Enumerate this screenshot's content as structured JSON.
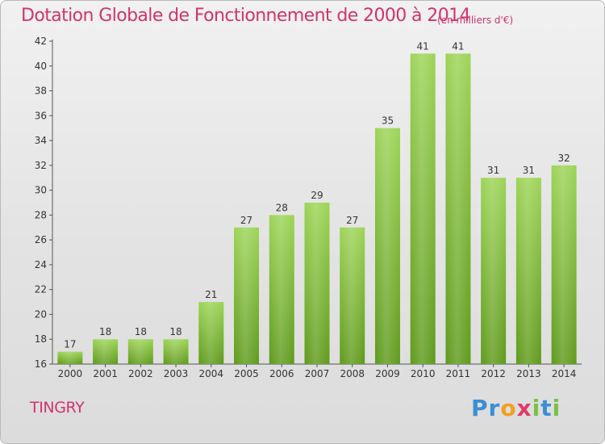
{
  "header": {
    "title": "Dotation Globale de Fonctionnement de 2000 à 2014",
    "subtitle": "(en milliers d'€)"
  },
  "commune": "TINGRY",
  "logo": {
    "text": "Proxiti",
    "letters": [
      {
        "ch": "P",
        "color": "#3a8fd6"
      },
      {
        "ch": "r",
        "color": "#3a8fd6"
      },
      {
        "ch": "o",
        "color": "#f0a020"
      },
      {
        "ch": "x",
        "color": "#e03a6a"
      },
      {
        "ch": "i",
        "color": "#7ac142"
      },
      {
        "ch": "t",
        "color": "#3a8fd6"
      },
      {
        "ch": "i",
        "color": "#7ac142"
      }
    ]
  },
  "colors": {
    "accent": "#d0346e",
    "bar_top": "#9dd457",
    "bar_bottom": "#5f9a1c"
  },
  "chart_data": {
    "type": "bar",
    "categories": [
      "2000",
      "2001",
      "2002",
      "2003",
      "2004",
      "2005",
      "2006",
      "2007",
      "2008",
      "2009",
      "2010",
      "2011",
      "2012",
      "2013",
      "2014"
    ],
    "values": [
      17,
      18,
      18,
      18,
      21,
      27,
      28,
      29,
      27,
      35,
      41,
      41,
      31,
      31,
      32
    ],
    "ylim": [
      16,
      42
    ],
    "yticks": [
      16,
      18,
      20,
      22,
      24,
      26,
      28,
      30,
      32,
      34,
      36,
      38,
      40,
      42
    ],
    "grid": false,
    "data_labels": true
  }
}
